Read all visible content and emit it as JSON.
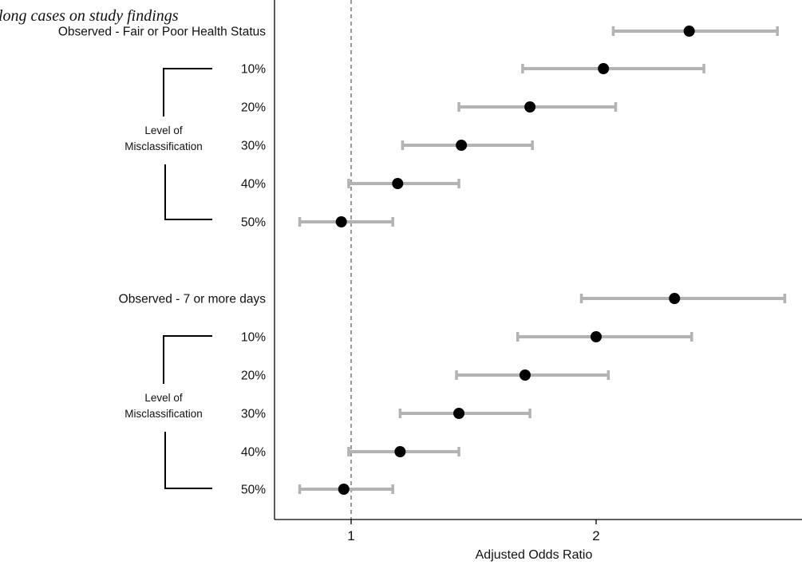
{
  "caption": "long cases on study findings",
  "chart_data": {
    "type": "forest",
    "title": "",
    "xlabel": "Adjusted Odds Ratio",
    "xlim": [
      0.69,
      2.82
    ],
    "xticks": [
      1,
      2
    ],
    "reference_line": 1,
    "colors": {
      "point": "#000000",
      "ci": "#b3b3b3",
      "reference": "#555555",
      "axis": "#000000"
    },
    "rows": [
      {
        "label": "Observed - Fair or Poor Health Status",
        "or": 2.38,
        "lo": 2.07,
        "hi": 2.74
      },
      {
        "label": "10%",
        "or": 2.03,
        "lo": 1.7,
        "hi": 2.44
      },
      {
        "label": "20%",
        "or": 1.73,
        "lo": 1.44,
        "hi": 2.08
      },
      {
        "label": "30%",
        "or": 1.45,
        "lo": 1.21,
        "hi": 1.74
      },
      {
        "label": "40%",
        "or": 1.19,
        "lo": 0.99,
        "hi": 1.44
      },
      {
        "label": "50%",
        "or": 0.96,
        "lo": 0.79,
        "hi": 1.17
      },
      {
        "label": "Observed - 7 or more days",
        "or": 2.32,
        "lo": 1.94,
        "hi": 2.77
      },
      {
        "label": "10%",
        "or": 2.0,
        "lo": 1.68,
        "hi": 2.39
      },
      {
        "label": "20%",
        "or": 1.71,
        "lo": 1.43,
        "hi": 2.05
      },
      {
        "label": "30%",
        "or": 1.44,
        "lo": 1.2,
        "hi": 1.73
      },
      {
        "label": "40%",
        "or": 1.2,
        "lo": 0.99,
        "hi": 1.44
      },
      {
        "label": "50%",
        "or": 0.97,
        "lo": 0.79,
        "hi": 1.17
      }
    ],
    "group_labels": [
      {
        "line1": "Level of",
        "line2": "Misclassification"
      },
      {
        "line1": "Level of",
        "line2": "Misclassification"
      }
    ]
  }
}
